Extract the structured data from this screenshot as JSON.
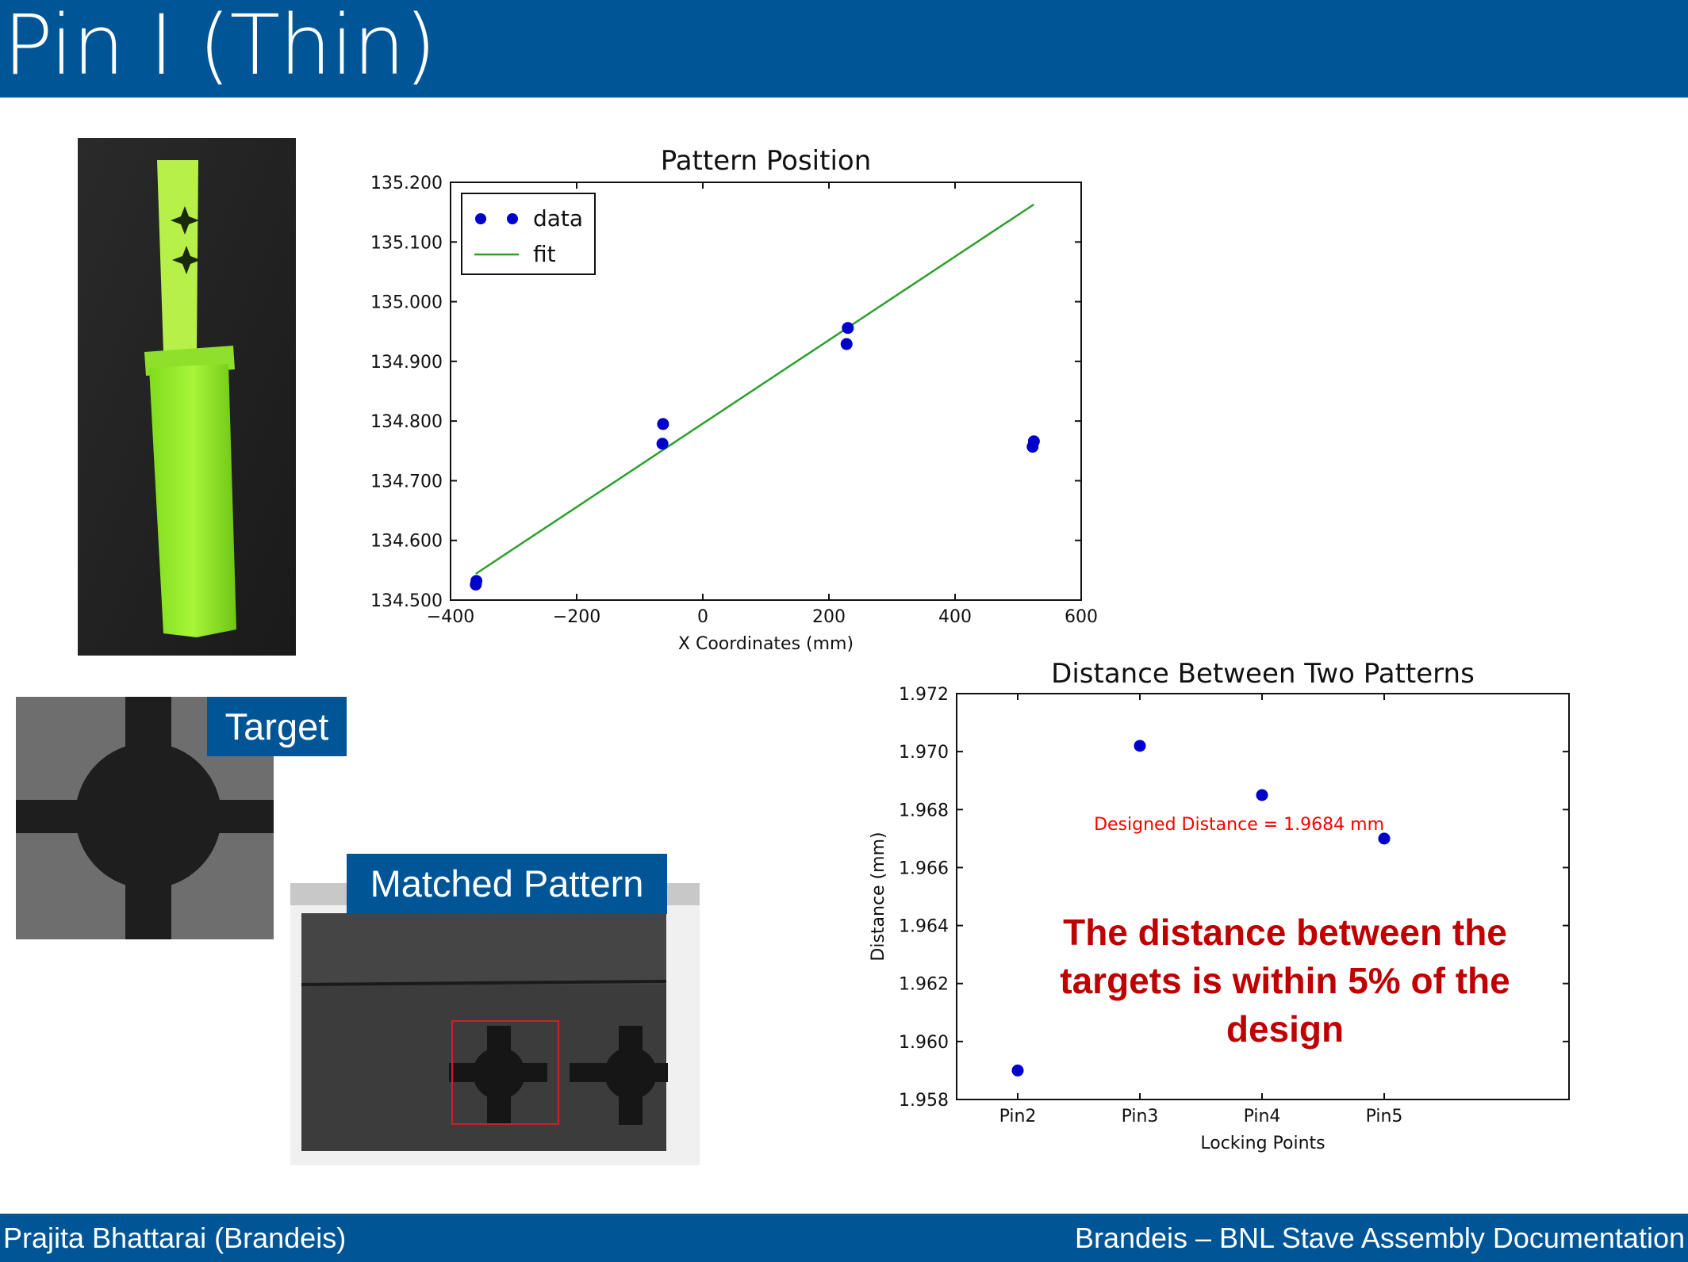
{
  "title": "Pin I (Thin)",
  "footer": {
    "left": "Prajita Bhattarai (Brandeis)",
    "right": "Brandeis – BNL Stave Assembly Documentation"
  },
  "labels": {
    "target": "Target",
    "matched": "Matched Pattern"
  },
  "callout": "The distance between the targets is within 5% of the design",
  "colors": {
    "bar": "#005596",
    "points": "#0000cc",
    "fit": "#2ca02c",
    "annotation": "#ff0000",
    "callout": "#c00000"
  },
  "chart_data": [
    {
      "type": "scatter",
      "title": "Pattern Position",
      "xlabel": "X Coordinates (mm)",
      "ylabel": "",
      "xlim": [
        -400,
        600
      ],
      "ylim": [
        134.5,
        135.2
      ],
      "xticks": [
        "−400",
        "−200",
        "0",
        "200",
        "400",
        "600"
      ],
      "yticks": [
        "134.500",
        "134.600",
        "134.700",
        "134.800",
        "134.900",
        "135.000",
        "135.100",
        "135.200"
      ],
      "legend": {
        "position": "top-left",
        "entries": [
          "data",
          "fit"
        ]
      },
      "series": [
        {
          "name": "data",
          "points": [
            [
              -360,
              134.526
            ],
            [
              -359,
              134.532
            ],
            [
              -63,
              134.795
            ],
            [
              -64,
              134.762
            ],
            [
              230,
              134.956
            ],
            [
              228,
              134.929
            ],
            [
              525,
              134.766
            ],
            [
              523,
              134.757
            ]
          ]
        },
        {
          "name": "fit",
          "line": [
            [
              -360,
              134.544
            ],
            [
              525,
              135.163
            ]
          ]
        }
      ]
    },
    {
      "type": "scatter",
      "title": "Distance Between Two Patterns",
      "xlabel": "Locking Points",
      "ylabel": "Distance (mm)",
      "categories": [
        "Pin2",
        "Pin3",
        "Pin4",
        "Pin5"
      ],
      "ylim": [
        1.958,
        1.972
      ],
      "yticks": [
        "1.958",
        "1.960",
        "1.962",
        "1.964",
        "1.966",
        "1.968",
        "1.970",
        "1.972"
      ],
      "values": [
        1.959,
        1.9702,
        1.9685,
        1.967
      ],
      "annotation": "Designed Distance = 1.9684 mm"
    }
  ]
}
